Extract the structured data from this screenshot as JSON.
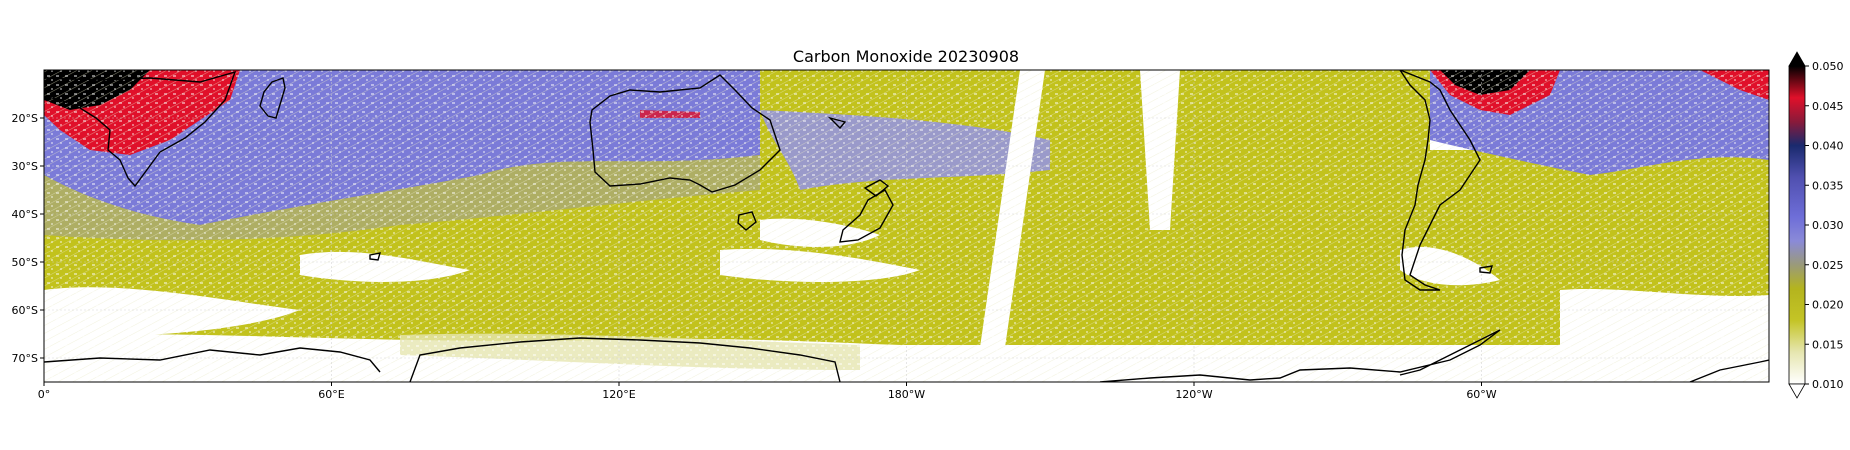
{
  "title": "Carbon Monoxide 20230908",
  "map": {
    "lon_ticks": [
      "0°",
      "60°E",
      "120°E",
      "180°W",
      "120°W",
      "60°W"
    ],
    "lat_ticks": [
      "20°S",
      "30°S",
      "40°S",
      "50°S",
      "60°S",
      "70°S"
    ],
    "lon_range": [
      0,
      360
    ],
    "lat_range": [
      -75,
      -10
    ],
    "gridlines": true
  },
  "colorbar": {
    "ticks": [
      "0.050",
      "0.045",
      "0.040",
      "0.035",
      "0.030",
      "0.025",
      "0.020",
      "0.015",
      "0.010"
    ],
    "range": [
      0.01,
      0.05
    ],
    "extend": "both",
    "stops": [
      {
        "v": 0.01,
        "c": "#ffffff"
      },
      {
        "v": 0.014,
        "c": "#e6e6b0"
      },
      {
        "v": 0.018,
        "c": "#c4c426"
      },
      {
        "v": 0.022,
        "c": "#b4b41e"
      },
      {
        "v": 0.025,
        "c": "#9a9a7a"
      },
      {
        "v": 0.028,
        "c": "#8a8ad8"
      },
      {
        "v": 0.031,
        "c": "#6e6ed8"
      },
      {
        "v": 0.036,
        "c": "#5050b0"
      },
      {
        "v": 0.04,
        "c": "#1a2a6e"
      },
      {
        "v": 0.043,
        "c": "#8a1a3a"
      },
      {
        "v": 0.046,
        "c": "#e0102a"
      },
      {
        "v": 0.05,
        "c": "#000000"
      }
    ]
  },
  "colors": {
    "co_low": "#c2c21c",
    "co_mid": "#9a9a7a",
    "co_high": "#6e6ed8",
    "co_very_high": "#e0102a",
    "co_extreme": "#000000",
    "coast": "#000000",
    "no_data": "#ffffff"
  }
}
